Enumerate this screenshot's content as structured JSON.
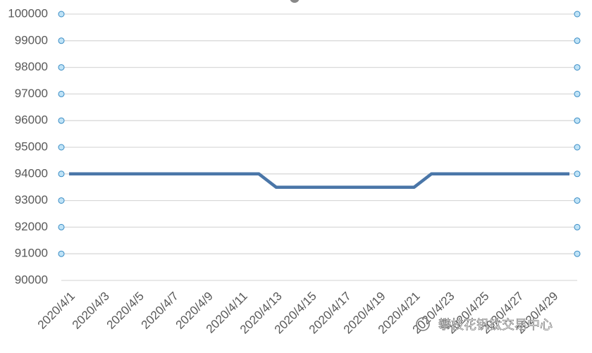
{
  "chart_data": {
    "type": "line",
    "categories": [
      "2020/4/1",
      null,
      "2020/4/3",
      null,
      "2020/4/5",
      null,
      "2020/4/7",
      null,
      "2020/4/9",
      null,
      "2020/4/11",
      null,
      "2020/4/13",
      null,
      "2020/4/15",
      null,
      "2020/4/17",
      null,
      "2020/4/19",
      null,
      "2020/4/21",
      null,
      "2020/4/23",
      null,
      "2020/4/25",
      null,
      "2020/4/27",
      null,
      "2020/4/29",
      null
    ],
    "values": [
      94000,
      94000,
      94000,
      94000,
      94000,
      94000,
      94000,
      94000,
      94000,
      94000,
      94000,
      94000,
      93500,
      93500,
      93500,
      93500,
      93500,
      93500,
      93500,
      93500,
      93500,
      94000,
      94000,
      94000,
      94000,
      94000,
      94000,
      94000,
      94000,
      94000
    ],
    "color": "#4a76a8",
    "ylim": [
      90000,
      100000
    ],
    "yticks": [
      90000,
      91000,
      92000,
      93000,
      94000,
      95000,
      96000,
      97000,
      98000,
      99000,
      100000
    ],
    "grid": true
  },
  "watermark": "攀枝花钒钛交易中心"
}
